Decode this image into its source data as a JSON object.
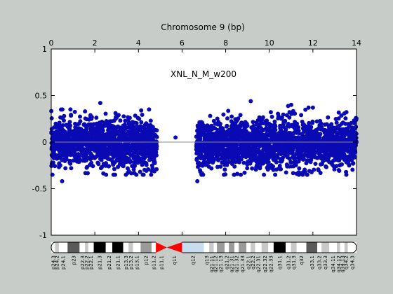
{
  "chart_data": {
    "type": "scatter",
    "title": "Chromosome 9 (bp)",
    "annotation": "XNL_N_M_w200",
    "xlim": [
      0,
      14
    ],
    "ylim": [
      -1,
      1
    ],
    "x_ticks": [
      0,
      2,
      4,
      6,
      8,
      10,
      12,
      14
    ],
    "y_ticks": [
      -1,
      -0.5,
      0,
      0.5,
      1
    ],
    "y_tick_labels": [
      "-1",
      "-0.5",
      "0",
      "0.5",
      "1"
    ],
    "x_axis_position": "top",
    "grid": false,
    "reference_line_y": 0,
    "marker_color": "#0a0ab4",
    "segments": [
      {
        "x_start": 0.0,
        "x_end": 4.85,
        "y_center": -0.02,
        "y_spread": 0.13,
        "typical_range": [
          -0.35,
          0.35
        ]
      },
      {
        "x_start": 6.65,
        "x_end": 14.0,
        "y_center": -0.02,
        "y_spread": 0.13,
        "typical_range": [
          -0.35,
          0.4
        ]
      }
    ],
    "outliers": [
      {
        "x": 2.25,
        "y": 0.42
      },
      {
        "x": 5.7,
        "y": 0.05
      },
      {
        "x": 9.15,
        "y": 0.44
      },
      {
        "x": 11.8,
        "y": 0.37
      },
      {
        "x": 0.45,
        "y": 0.35
      },
      {
        "x": 1.55,
        "y": 0.33
      },
      {
        "x": 0.5,
        "y": -0.42
      },
      {
        "x": 6.7,
        "y": -0.42
      },
      {
        "x": 12.0,
        "y": 0.37
      }
    ],
    "ideogram": {
      "bands": [
        {
          "name": "p24.3",
          "x0": 0.0,
          "x1": 0.18,
          "stain": "gneg"
        },
        {
          "name": "p24.2",
          "x0": 0.18,
          "x1": 0.35,
          "stain": "gpos25"
        },
        {
          "name": "p24.1",
          "x0": 0.35,
          "x1": 0.75,
          "stain": "gneg"
        },
        {
          "name": "p23",
          "x0": 0.75,
          "x1": 1.3,
          "stain": "gpos75"
        },
        {
          "name": "p22.3",
          "x0": 1.3,
          "x1": 1.55,
          "stain": "gneg"
        },
        {
          "name": "p22.2",
          "x0": 1.55,
          "x1": 1.7,
          "stain": "gpos25"
        },
        {
          "name": "p22.1",
          "x0": 1.7,
          "x1": 1.95,
          "stain": "gneg"
        },
        {
          "name": "p21.3",
          "x0": 1.95,
          "x1": 2.5,
          "stain": "gpos100"
        },
        {
          "name": "p21.2",
          "x0": 2.5,
          "x1": 2.8,
          "stain": "gneg"
        },
        {
          "name": "p21.1",
          "x0": 2.8,
          "x1": 3.3,
          "stain": "gpos100"
        },
        {
          "name": "p13.3",
          "x0": 3.3,
          "x1": 3.55,
          "stain": "gneg"
        },
        {
          "name": "p13.2",
          "x0": 3.55,
          "x1": 3.75,
          "stain": "gpos25"
        },
        {
          "name": "p13.1",
          "x0": 3.75,
          "x1": 4.1,
          "stain": "gneg"
        },
        {
          "name": "p12",
          "x0": 4.1,
          "x1": 4.6,
          "stain": "gpos50"
        },
        {
          "name": "p11.2",
          "x0": 4.6,
          "x1": 4.8,
          "stain": "gneg"
        },
        {
          "name": "p11.1",
          "x0": 4.8,
          "x1": 5.3,
          "stain": "acen"
        },
        {
          "name": "q11",
          "x0": 5.3,
          "x1": 6.0,
          "stain": "acen"
        },
        {
          "name": "q12",
          "x0": 6.0,
          "x1": 7.0,
          "stain": "gvar"
        },
        {
          "name": "q13",
          "x0": 7.0,
          "x1": 7.25,
          "stain": "gneg"
        },
        {
          "name": "q21.11",
          "x0": 7.25,
          "x1": 7.45,
          "stain": "gpos25"
        },
        {
          "name": "q21.12",
          "x0": 7.45,
          "x1": 7.6,
          "stain": "gneg"
        },
        {
          "name": "q21.13",
          "x0": 7.6,
          "x1": 7.95,
          "stain": "gpos50"
        },
        {
          "name": "q21.2",
          "x0": 7.95,
          "x1": 8.15,
          "stain": "gneg"
        },
        {
          "name": "q21.31",
          "x0": 8.15,
          "x1": 8.4,
          "stain": "gpos50"
        },
        {
          "name": "q21.32",
          "x0": 8.4,
          "x1": 8.6,
          "stain": "gneg"
        },
        {
          "name": "q21.33",
          "x0": 8.6,
          "x1": 8.95,
          "stain": "gpos50"
        },
        {
          "name": "q22.1",
          "x0": 8.95,
          "x1": 9.15,
          "stain": "gneg"
        },
        {
          "name": "q22.2",
          "x0": 9.15,
          "x1": 9.35,
          "stain": "gpos25"
        },
        {
          "name": "q22.31",
          "x0": 9.35,
          "x1": 9.65,
          "stain": "gneg"
        },
        {
          "name": "q22.32",
          "x0": 9.65,
          "x1": 9.95,
          "stain": "gpos25"
        },
        {
          "name": "q22.33",
          "x0": 9.95,
          "x1": 10.2,
          "stain": "gneg"
        },
        {
          "name": "q31.1",
          "x0": 10.2,
          "x1": 10.75,
          "stain": "gpos100"
        },
        {
          "name": "q31.2",
          "x0": 10.75,
          "x1": 11.0,
          "stain": "gneg"
        },
        {
          "name": "q31.3",
          "x0": 11.0,
          "x1": 11.25,
          "stain": "gpos25"
        },
        {
          "name": "q32",
          "x0": 11.25,
          "x1": 11.7,
          "stain": "gneg"
        },
        {
          "name": "q33.1",
          "x0": 11.7,
          "x1": 12.2,
          "stain": "gpos75"
        },
        {
          "name": "q33.2",
          "x0": 12.2,
          "x1": 12.4,
          "stain": "gneg"
        },
        {
          "name": "q33.3",
          "x0": 12.4,
          "x1": 12.75,
          "stain": "gpos25"
        },
        {
          "name": "q34.11",
          "x0": 12.75,
          "x1": 13.1,
          "stain": "gneg"
        },
        {
          "name": "q34.12",
          "x0": 13.1,
          "x1": 13.25,
          "stain": "gpos25"
        },
        {
          "name": "q34.13",
          "x0": 13.25,
          "x1": 13.45,
          "stain": "gneg"
        },
        {
          "name": "q34.2",
          "x0": 13.45,
          "x1": 13.6,
          "stain": "gpos25"
        },
        {
          "name": "q34.3",
          "x0": 13.6,
          "x1": 14.0,
          "stain": "gneg"
        }
      ],
      "stain_colors": {
        "gneg": "#ffffff",
        "gpos25": "#c8c8c8",
        "gpos50": "#9a9a9a",
        "gpos75": "#5a5a5a",
        "gpos100": "#000000",
        "acen": "#ff0000",
        "gvar": "#c8dcf0"
      }
    }
  }
}
